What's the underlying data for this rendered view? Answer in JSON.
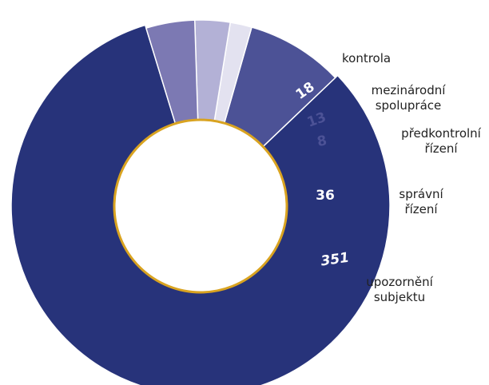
{
  "chart_data": {
    "type": "pie",
    "title": "",
    "slices": [
      {
        "label": "upozornění subjektu",
        "label_lines": [
          "upozornění",
          "subjektu"
        ],
        "value": 351,
        "color": "#27337a",
        "value_color": "#ffffff"
      },
      {
        "label": "správní řízení",
        "label_lines": [
          "správní",
          "řízení"
        ],
        "value": 36,
        "color": "#4c5296",
        "value_color": "#ffffff"
      },
      {
        "label": "předkontrolní řízení",
        "label_lines": [
          "předkontrolní",
          "řízení"
        ],
        "value": 8,
        "color": "#e3e2f0",
        "value_color": "#4c5296"
      },
      {
        "label": "mezinárodní spolupráce",
        "label_lines": [
          "mezinárodní",
          "spolupráce"
        ],
        "value": 13,
        "color": "#b3b1d6",
        "value_color": "#4c5296"
      },
      {
        "label": "kontrola",
        "label_lines": [
          "kontrola"
        ],
        "value": 18,
        "color": "#7c79b3",
        "value_color": "#ffffff"
      }
    ],
    "donut": true,
    "hole_color": "#ffffff",
    "hole_border_color": "#d9a320",
    "legend": "none"
  }
}
